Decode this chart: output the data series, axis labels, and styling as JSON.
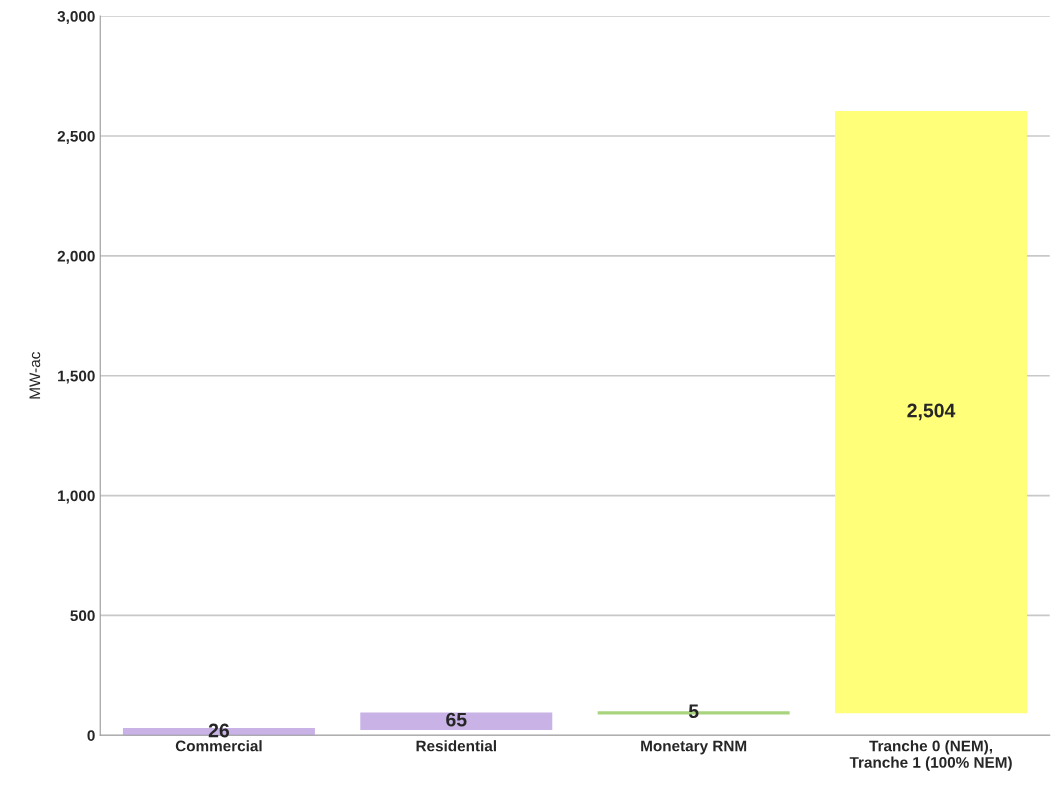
{
  "chart_data": {
    "type": "bar",
    "ylabel": "MW-ac",
    "categories": [
      "Commercial",
      "Residential",
      "Monetary RNM",
      "Tranche 0 (NEM), Tranche 1 (100% NEM)"
    ],
    "values": [
      26,
      65,
      5,
      2504
    ],
    "base": [
      0,
      26,
      91,
      96
    ],
    "colors": [
      "#c8b2e6",
      "#c8b2e6",
      "#a9d47e",
      "#ffff7a"
    ],
    "value_labels": [
      "26",
      "65",
      "5",
      "2,504"
    ],
    "ylim": [
      0,
      3000
    ],
    "yticks": [
      {
        "value": 0,
        "label": "0"
      },
      {
        "value": 500,
        "label": "500"
      },
      {
        "value": 1000,
        "label": "1,000"
      },
      {
        "value": 1500,
        "label": "1,500"
      },
      {
        "value": 2000,
        "label": "2,000"
      },
      {
        "value": 2500,
        "label": "2,500"
      },
      {
        "value": 3000,
        "label": "3,000"
      }
    ],
    "grid": "y",
    "legend": false
  }
}
